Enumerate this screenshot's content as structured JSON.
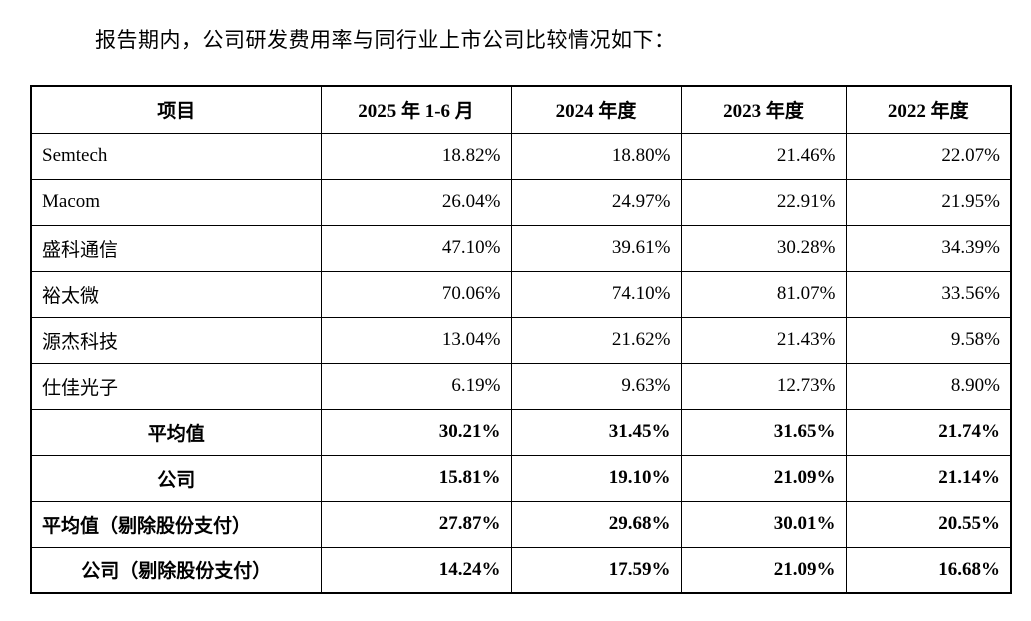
{
  "page": {
    "title": "报告期内，公司研发费用率与同行业上市公司比较情况如下："
  },
  "table": {
    "headers": [
      "项目",
      "2025 年 1-6 月",
      "2024 年度",
      "2023 年度",
      "2022 年度"
    ],
    "rows": [
      {
        "label": "Semtech",
        "values": [
          "18.82%",
          "18.80%",
          "21.46%",
          "22.07%"
        ],
        "bold": false,
        "label_align": "left"
      },
      {
        "label": "Macom",
        "values": [
          "26.04%",
          "24.97%",
          "22.91%",
          "21.95%"
        ],
        "bold": false,
        "label_align": "left"
      },
      {
        "label": "盛科通信",
        "values": [
          "47.10%",
          "39.61%",
          "30.28%",
          "34.39%"
        ],
        "bold": false,
        "label_align": "left"
      },
      {
        "label": "裕太微",
        "values": [
          "70.06%",
          "74.10%",
          "81.07%",
          "33.56%"
        ],
        "bold": false,
        "label_align": "left"
      },
      {
        "label": "源杰科技",
        "values": [
          "13.04%",
          "21.62%",
          "21.43%",
          "9.58%"
        ],
        "bold": false,
        "label_align": "left"
      },
      {
        "label": "仕佳光子",
        "values": [
          "6.19%",
          "9.63%",
          "12.73%",
          "8.90%"
        ],
        "bold": false,
        "label_align": "left"
      },
      {
        "label": "平均值",
        "values": [
          "30.21%",
          "31.45%",
          "31.65%",
          "21.74%"
        ],
        "bold": true,
        "label_align": "center"
      },
      {
        "label": "公司",
        "values": [
          "15.81%",
          "19.10%",
          "21.09%",
          "21.14%"
        ],
        "bold": true,
        "label_align": "center"
      },
      {
        "label": "平均值（剔除股份支付）",
        "values": [
          "27.87%",
          "29.68%",
          "30.01%",
          "20.55%"
        ],
        "bold": true,
        "label_align": "left"
      },
      {
        "label": "公司（剔除股份支付）",
        "values": [
          "14.24%",
          "17.59%",
          "21.09%",
          "16.68%"
        ],
        "bold": true,
        "label_align": "center"
      }
    ]
  }
}
